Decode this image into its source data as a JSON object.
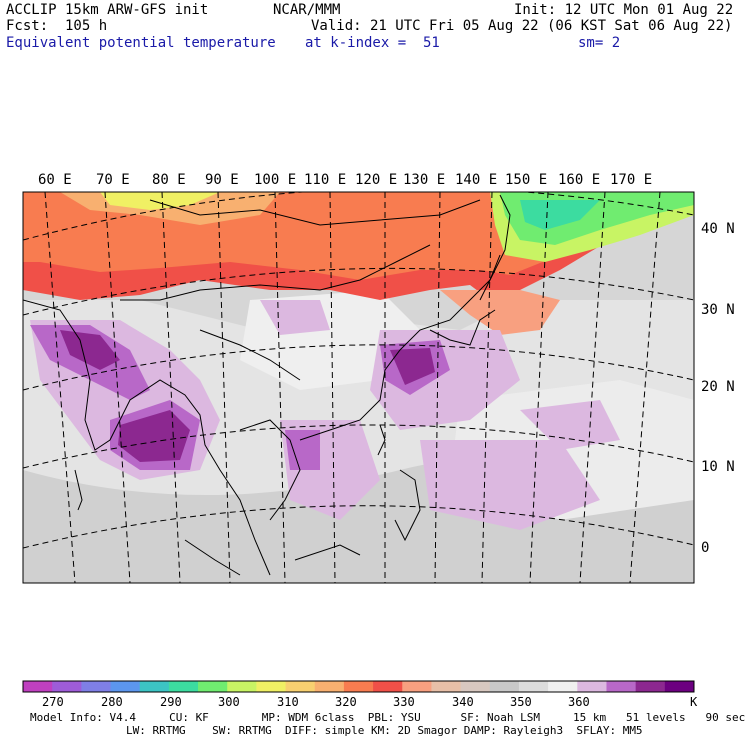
{
  "header": {
    "line1_left": "ACCLIP 15km ARW-GFS init",
    "line1_center": "NCAR/MMM",
    "line1_right": "Init: 12 UTC Mon 01 Aug 22",
    "line2_left": "Fcst:  105 h",
    "line2_right": "Valid: 21 UTC Fri 05 Aug 22 (06 KST Sat 06 Aug 22)",
    "line3_left": "Equivalent potential temperature",
    "line3_center": "at k-index =  51",
    "line3_right": "sm= 2"
  },
  "map": {
    "lon_labels": [
      "60 E",
      "70 E",
      "80 E",
      "90 E",
      "100 E",
      "110 E",
      "120 E",
      "130 E",
      "140 E",
      "150 E",
      "160 E",
      "170 E"
    ],
    "lat_labels": [
      "40 N",
      "30 N",
      "20 N",
      "10 N",
      "0"
    ]
  },
  "colorbar": {
    "colors": [
      "#c040c0",
      "#9e5cd8",
      "#7f7fe6",
      "#5c96ee",
      "#3cc4c4",
      "#3cdca0",
      "#70ec70",
      "#c8f464",
      "#f0f064",
      "#f8d070",
      "#f8b070",
      "#f87c50",
      "#f05048",
      "#f8a080",
      "#e8c0a8",
      "#d8c8c0",
      "#c8c8c8",
      "#dcdcdc",
      "#f0f0f0",
      "#dcb8e0",
      "#b868c8",
      "#8c2890",
      "#6c0080"
    ],
    "labels": [
      "270",
      "280",
      "290",
      "300",
      "310",
      "320",
      "330",
      "340",
      "350",
      "360"
    ],
    "unit": "K"
  },
  "footer": {
    "line1": "Model Info: V4.4     CU: KF        MP: WDM 6class  PBL: YSU      SF: Noah LSM     15 km   51 levels   90 sec",
    "line2": "LW: RRTMG    SW: RRTMG  DIFF: simple KM: 2D Smagor DAMP: Rayleigh3  SFLAY: MM5"
  }
}
